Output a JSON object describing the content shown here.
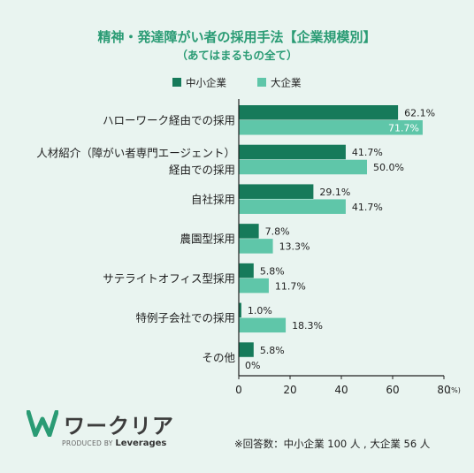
{
  "title": "精神・発達障がい者の採用手法【企業規模別】",
  "subtitle": "（あてはまるもの全て）",
  "legend": {
    "small": "中小企業",
    "large": "大企業"
  },
  "colors": {
    "small": "#167a5a",
    "large": "#5fc6a9",
    "accent": "#2a9b74",
    "background": "#e9f4f0"
  },
  "chart_data": {
    "type": "bar",
    "orientation": "horizontal",
    "categories": [
      [
        "ハローワーク経由での採用"
      ],
      [
        "人材紹介（障がい者専門エージェント）",
        "経由での採用"
      ],
      [
        "自社採用"
      ],
      [
        "農園型採用"
      ],
      [
        "サテライトオフィス型採用"
      ],
      [
        "特例子会社での採用"
      ],
      [
        "その他"
      ]
    ],
    "series": [
      {
        "name": "中小企業",
        "values": [
          62.1,
          41.7,
          29.1,
          7.8,
          5.8,
          1.0,
          5.8
        ],
        "labels": [
          "62.1%",
          "41.7%",
          "29.1%",
          "7.8%",
          "5.8%",
          "1.0%",
          "5.8%"
        ]
      },
      {
        "name": "大企業",
        "values": [
          71.7,
          50.0,
          41.7,
          13.3,
          11.7,
          18.3,
          0
        ],
        "labels": [
          "71.7%",
          "50.0%",
          "41.7%",
          "13.3%",
          "11.7%",
          "18.3%",
          "0%"
        ]
      }
    ],
    "xlim": [
      0,
      80
    ],
    "xticks": [
      "0",
      "20",
      "40",
      "60",
      "80"
    ],
    "x_unit": "(%)",
    "legend_position": "top"
  },
  "logo": {
    "word": "ワークリア",
    "produced_by": "PRODUCED BY",
    "brand": "Leverages"
  },
  "footnote": "※回答数：中小企業 100 人 , 大企業 56 人"
}
